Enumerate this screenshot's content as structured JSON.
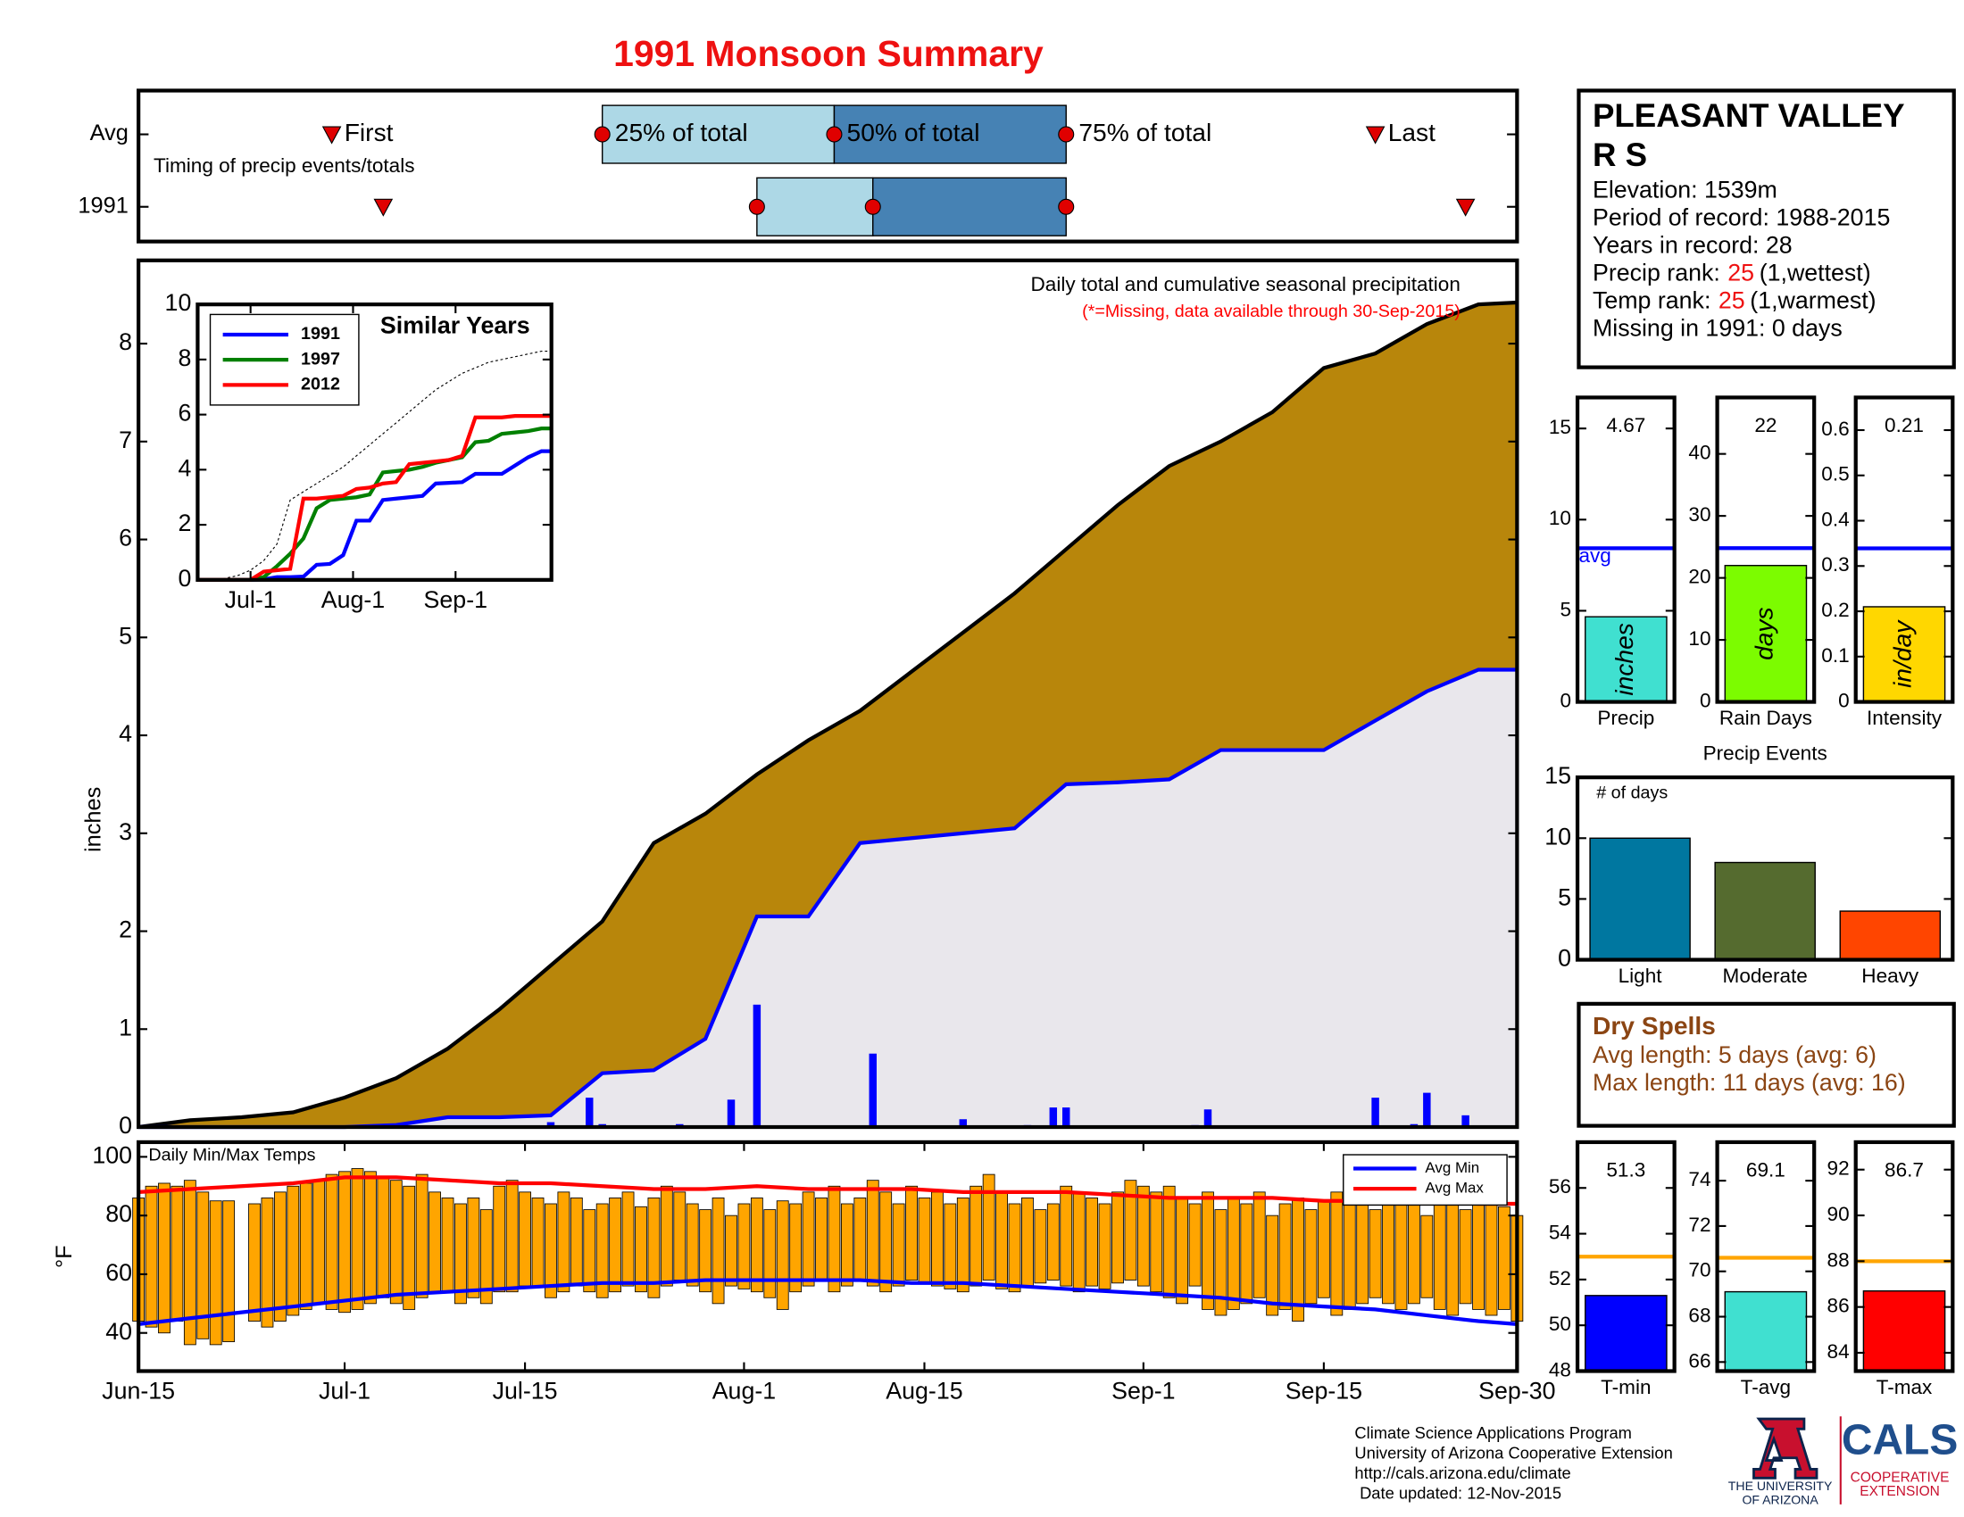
{
  "title": "1991 Monsoon Summary",
  "station": {
    "name": [
      "PLEASANT VALLEY",
      "R S"
    ],
    "lines": [
      "Elevation: 1539m",
      "Period of record: 1988-2015",
      "Years in record: 28"
    ],
    "ranks": [
      {
        "label": "Precip rank:",
        "rank": 25,
        "note": "(1,wettest)"
      },
      {
        "label": "Temp rank:",
        "rank": 25,
        "note": "(1,warmest)"
      }
    ],
    "missing": "Missing in 1991: 0 days"
  },
  "dry_spells": {
    "title": "Dry Spells",
    "lines": [
      "Avg length: 5 days (avg: 6)",
      "Max length: 11 days (avg: 16)"
    ]
  },
  "footer": {
    "lines": [
      "Climate Science Applications Program",
      "University of Arizona Cooperative Extension",
      "http://cals.arizona.edu/climate",
      "Date updated: 12-Nov-2015"
    ],
    "logo_ua": [
      "THE UNIVERSITY",
      "OF ARIZONA"
    ],
    "logo_cals": "CALS",
    "logo_ext": [
      "COOPERATIVE",
      "EXTENSION"
    ]
  },
  "chart_data": [
    {
      "type": "timeline",
      "note": "Timing of precip events/totals",
      "categories": [
        "Avg",
        "1991"
      ],
      "marker_labels": [
        "First",
        "25% of total",
        "50% of total",
        "75% of total",
        "Last"
      ],
      "values": [
        [
          15,
          36,
          54,
          72,
          96
        ],
        [
          19,
          48,
          57,
          72,
          103
        ]
      ],
      "xlim": [
        0,
        107
      ],
      "colors": [
        "#add8e6",
        "#4682b4"
      ],
      "marker_color": "#e00000"
    },
    {
      "type": "area",
      "ylabel": "inches",
      "annotation": "Daily total and cumulative seasonal precipitation",
      "note": "(*=Missing, data available through 30-Sep-2015)",
      "note_color": "#ff0000",
      "background": "#ffffff",
      "xlim": [
        0,
        107
      ],
      "ylim": [
        0,
        8.85
      ],
      "yticks": [
        0,
        1,
        2,
        3,
        4,
        5,
        6,
        7,
        8
      ],
      "x": [
        0,
        4,
        8,
        12,
        16,
        20,
        24,
        28,
        32,
        36,
        40,
        44,
        48,
        52,
        56,
        60,
        64,
        68,
        72,
        76,
        80,
        84,
        88,
        92,
        96,
        100,
        104,
        107
      ],
      "series": [
        {
          "color": "#000000",
          "fill": "#b8860b",
          "values": [
            0,
            0.07,
            0.1,
            0.15,
            0.3,
            0.5,
            0.8,
            1.2,
            1.65,
            2.1,
            2.9,
            3.2,
            3.6,
            3.95,
            4.25,
            4.65,
            5.05,
            5.45,
            5.9,
            6.35,
            6.75,
            7.0,
            7.3,
            7.75,
            7.9,
            8.2,
            8.4,
            8.42
          ]
        },
        {
          "color": "#0000ff",
          "fill": "#e9e7ec",
          "values": [
            0,
            0,
            0,
            0,
            0,
            0.02,
            0.1,
            0.1,
            0.12,
            0.55,
            0.58,
            0.9,
            2.15,
            2.15,
            2.9,
            2.95,
            3.0,
            3.05,
            3.5,
            3.52,
            3.55,
            3.85,
            3.85,
            3.85,
            4.15,
            4.45,
            4.67,
            4.67
          ]
        },
        {
          "type": "bar",
          "color": "#0000ff",
          "x": [
            32,
            35,
            36,
            42,
            46,
            48,
            57,
            64,
            69,
            71,
            72,
            82,
            83,
            96,
            99,
            100,
            103
          ],
          "values": [
            0.05,
            0.3,
            0.03,
            0.03,
            0.28,
            1.25,
            0.75,
            0.08,
            0.02,
            0.2,
            0.2,
            0.02,
            0.18,
            0.3,
            0.03,
            0.35,
            0.12
          ]
        }
      ]
    },
    {
      "type": "line",
      "title": "Similar Years",
      "legend": "upper left",
      "background": "#ffffff",
      "xlim": [
        0,
        107
      ],
      "ylim": [
        0,
        10
      ],
      "yticks": [
        0,
        2,
        4,
        6,
        8,
        10
      ],
      "xticks": [
        {
          "value": 16,
          "label": "Jul-1"
        },
        {
          "value": 47,
          "label": "Aug-1"
        },
        {
          "value": 78,
          "label": "Sep-1"
        }
      ],
      "x": [
        0,
        4,
        8,
        12,
        16,
        20,
        24,
        28,
        32,
        36,
        40,
        44,
        48,
        52,
        56,
        60,
        64,
        68,
        72,
        76,
        80,
        84,
        88,
        92,
        96,
        100,
        104,
        107
      ],
      "series": [
        {
          "color": "#000000",
          "dash": true,
          "values": [
            0,
            0,
            0.05,
            0.15,
            0.35,
            0.7,
            1.3,
            2.9,
            3.2,
            3.5,
            3.8,
            4.1,
            4.5,
            4.9,
            5.3,
            5.7,
            6.1,
            6.5,
            6.9,
            7.2,
            7.5,
            7.7,
            7.9,
            8.0,
            8.1,
            8.2,
            8.3,
            8.3
          ]
        },
        {
          "name": "1991",
          "color": "#0000ff",
          "values": [
            0,
            0,
            0,
            0,
            0,
            0.02,
            0.1,
            0.1,
            0.12,
            0.55,
            0.58,
            0.9,
            2.15,
            2.15,
            2.9,
            2.95,
            3.0,
            3.05,
            3.5,
            3.52,
            3.55,
            3.85,
            3.85,
            3.85,
            4.15,
            4.45,
            4.67,
            4.67
          ]
        },
        {
          "name": "1997",
          "color": "#008000",
          "values": [
            0,
            0,
            0,
            0,
            0,
            0.1,
            0.5,
            0.95,
            1.5,
            2.6,
            2.9,
            2.95,
            3.0,
            3.1,
            3.9,
            3.95,
            4.0,
            4.1,
            4.25,
            4.35,
            4.45,
            5.0,
            5.05,
            5.3,
            5.35,
            5.4,
            5.5,
            5.5
          ]
        },
        {
          "name": "2012",
          "color": "#ff0000",
          "values": [
            0,
            0,
            0,
            0,
            0,
            0.3,
            0.35,
            0.4,
            2.95,
            2.95,
            3.0,
            3.05,
            3.3,
            3.35,
            3.5,
            3.55,
            4.2,
            4.25,
            4.3,
            4.35,
            4.5,
            5.9,
            5.9,
            5.9,
            5.95,
            5.95,
            5.95,
            5.95
          ]
        }
      ]
    },
    {
      "type": "bar",
      "categories": [
        "Precip"
      ],
      "values": [
        4.67
      ],
      "show_values": true,
      "color": "#40e0d0",
      "inner_label": "inches",
      "ylim": [
        0,
        16.7
      ],
      "yticks": [
        0,
        5,
        10,
        15
      ],
      "reference": 8.43,
      "reference_label": "avg",
      "reference_color": "#0000ff"
    },
    {
      "type": "bar",
      "categories": [
        "Rain Days"
      ],
      "values": [
        22
      ],
      "show_values": true,
      "color": "#7cfc00",
      "inner_label": "days",
      "ylim": [
        0,
        49.1
      ],
      "yticks": [
        0,
        10,
        20,
        30,
        40
      ],
      "reference": 24.8,
      "reference_color": "#0000ff"
    },
    {
      "type": "bar",
      "categories": [
        "Intensity"
      ],
      "values": [
        0.21
      ],
      "show_values": true,
      "color": "#ffd700",
      "inner_label": "in/day",
      "ylim": [
        0,
        0.672
      ],
      "yticks": [
        0,
        0.1,
        0.2,
        0.3,
        0.4,
        0.5,
        0.6
      ],
      "reference": 0.339,
      "reference_color": "#0000ff"
    },
    {
      "type": "bar",
      "title": "Precip Events",
      "annotation": "# of days",
      "categories": [
        "Light",
        "Moderate",
        "Heavy"
      ],
      "values": [
        10,
        8,
        4
      ],
      "colors": [
        "#0077a0",
        "#556b2f",
        "#ff4500"
      ],
      "ylim": [
        0,
        15
      ],
      "yticks": [
        0,
        5,
        10,
        15
      ]
    },
    {
      "type": "range-bar",
      "title": "Daily Min/Max Temps",
      "ylabel": "°F",
      "legend": "upper right",
      "xlim": [
        0,
        107
      ],
      "ylim": [
        27,
        105
      ],
      "yticks": [
        40,
        60,
        80,
        100
      ],
      "xticks": [
        {
          "value": 0,
          "label": "Jun-15"
        },
        {
          "value": 16,
          "label": "Jul-1"
        },
        {
          "value": 30,
          "label": "Jul-15"
        },
        {
          "value": 47,
          "label": "Aug-1"
        },
        {
          "value": 61,
          "label": "Aug-15"
        },
        {
          "value": 78,
          "label": "Sep-1"
        },
        {
          "value": 92,
          "label": "Sep-15"
        },
        {
          "value": 107,
          "label": "Sep-30"
        }
      ],
      "x": [
        0,
        1,
        2,
        3,
        4,
        5,
        6,
        7,
        8,
        9,
        10,
        11,
        12,
        13,
        14,
        15,
        16,
        17,
        18,
        19,
        20,
        21,
        22,
        23,
        24,
        25,
        26,
        27,
        28,
        29,
        30,
        31,
        32,
        33,
        34,
        35,
        36,
        37,
        38,
        39,
        40,
        41,
        42,
        43,
        44,
        45,
        46,
        47,
        48,
        49,
        50,
        51,
        52,
        53,
        54,
        55,
        56,
        57,
        58,
        59,
        60,
        61,
        62,
        63,
        64,
        65,
        66,
        67,
        68,
        69,
        70,
        71,
        72,
        73,
        74,
        75,
        76,
        77,
        78,
        79,
        80,
        81,
        82,
        83,
        84,
        85,
        86,
        87,
        88,
        89,
        90,
        91,
        92,
        93,
        94,
        95,
        96,
        97,
        98,
        99,
        100,
        101,
        102,
        103,
        104,
        105,
        106,
        107
      ],
      "bars": {
        "color": "#ffa500",
        "min": [
          44,
          42,
          40,
          44,
          36,
          38,
          36,
          37,
          null,
          44,
          42,
          44,
          46,
          48,
          50,
          48,
          47,
          48,
          50,
          52,
          50,
          48,
          52,
          54,
          54,
          50,
          52,
          50,
          54,
          54,
          56,
          56,
          52,
          54,
          56,
          54,
          52,
          54,
          56,
          54,
          52,
          56,
          58,
          56,
          54,
          50,
          56,
          55,
          54,
          52,
          48,
          54,
          56,
          58,
          54,
          56,
          58,
          56,
          54,
          56,
          58,
          57,
          56,
          55,
          54,
          56,
          58,
          55,
          54,
          56,
          57,
          58,
          56,
          54,
          56,
          55,
          57,
          58,
          56,
          54,
          52,
          50,
          56,
          48,
          46,
          48,
          50,
          52,
          46,
          48,
          44,
          50,
          52,
          46,
          48,
          50,
          52,
          50,
          48,
          50,
          52,
          48,
          46,
          50,
          48,
          46,
          48,
          44
        ],
        "max": [
          86,
          90,
          91,
          90,
          92,
          88,
          85,
          85,
          null,
          84,
          86,
          88,
          90,
          91,
          92,
          94,
          95,
          96,
          95,
          93,
          92,
          90,
          94,
          88,
          86,
          84,
          86,
          82,
          90,
          92,
          88,
          86,
          84,
          88,
          86,
          82,
          84,
          86,
          88,
          83,
          86,
          90,
          88,
          84,
          82,
          86,
          80,
          84,
          86,
          82,
          85,
          84,
          88,
          86,
          90,
          84,
          86,
          92,
          88,
          84,
          90,
          86,
          88,
          84,
          86,
          90,
          94,
          88,
          84,
          86,
          82,
          84,
          90,
          88,
          86,
          84,
          88,
          92,
          90,
          88,
          90,
          86,
          84,
          88,
          82,
          86,
          84,
          88,
          80,
          84,
          86,
          82,
          85,
          88,
          86,
          84,
          82,
          84,
          86,
          85,
          80,
          84,
          86,
          82,
          84,
          85,
          83,
          80
        ]
      },
      "series": [
        {
          "name": "Avg Min",
          "color": "#0000ff",
          "x": [
            0,
            4,
            8,
            12,
            16,
            20,
            24,
            28,
            32,
            36,
            40,
            44,
            48,
            52,
            56,
            60,
            64,
            68,
            72,
            76,
            80,
            84,
            88,
            92,
            96,
            100,
            104,
            107
          ],
          "values": [
            43,
            45,
            47,
            49,
            51,
            53,
            54,
            55,
            56,
            57,
            57,
            58,
            58,
            58,
            58,
            57,
            57,
            56,
            55,
            54,
            53,
            52,
            50,
            49,
            48,
            46,
            44,
            43
          ]
        },
        {
          "name": "Avg Max",
          "color": "#ff0000",
          "x": [
            0,
            4,
            8,
            12,
            16,
            20,
            24,
            28,
            32,
            36,
            40,
            44,
            48,
            52,
            56,
            60,
            64,
            68,
            72,
            76,
            80,
            84,
            88,
            92,
            96,
            100,
            104,
            107
          ],
          "values": [
            88,
            89,
            90,
            91,
            93,
            93,
            92,
            91,
            91,
            90,
            89,
            89,
            90,
            89,
            89,
            89,
            88,
            88,
            88,
            87,
            86,
            86,
            86,
            85,
            85,
            85,
            84,
            84
          ]
        }
      ]
    },
    {
      "type": "bar",
      "categories": [
        "T-min"
      ],
      "values": [
        51.3
      ],
      "show_values": true,
      "color": "#0000ff",
      "ylim": [
        48,
        58
      ],
      "yticks": [
        48,
        50,
        52,
        54,
        56
      ],
      "reference": 53.0,
      "reference_color": "#ffa500"
    },
    {
      "type": "bar",
      "categories": [
        "T-avg"
      ],
      "values": [
        69.1
      ],
      "show_values": true,
      "color": "#40e0d0",
      "ylim": [
        65.6,
        75.7
      ],
      "yticks": [
        66,
        68,
        70,
        72,
        74
      ],
      "reference": 70.6,
      "reference_color": "#ffa500"
    },
    {
      "type": "bar",
      "categories": [
        "T-max"
      ],
      "values": [
        86.7
      ],
      "show_values": true,
      "color": "#ff0000",
      "ylim": [
        83.2,
        93.2
      ],
      "yticks": [
        84,
        86,
        88,
        90,
        92
      ],
      "reference": 88.0,
      "reference_color": "#ffa500"
    }
  ]
}
